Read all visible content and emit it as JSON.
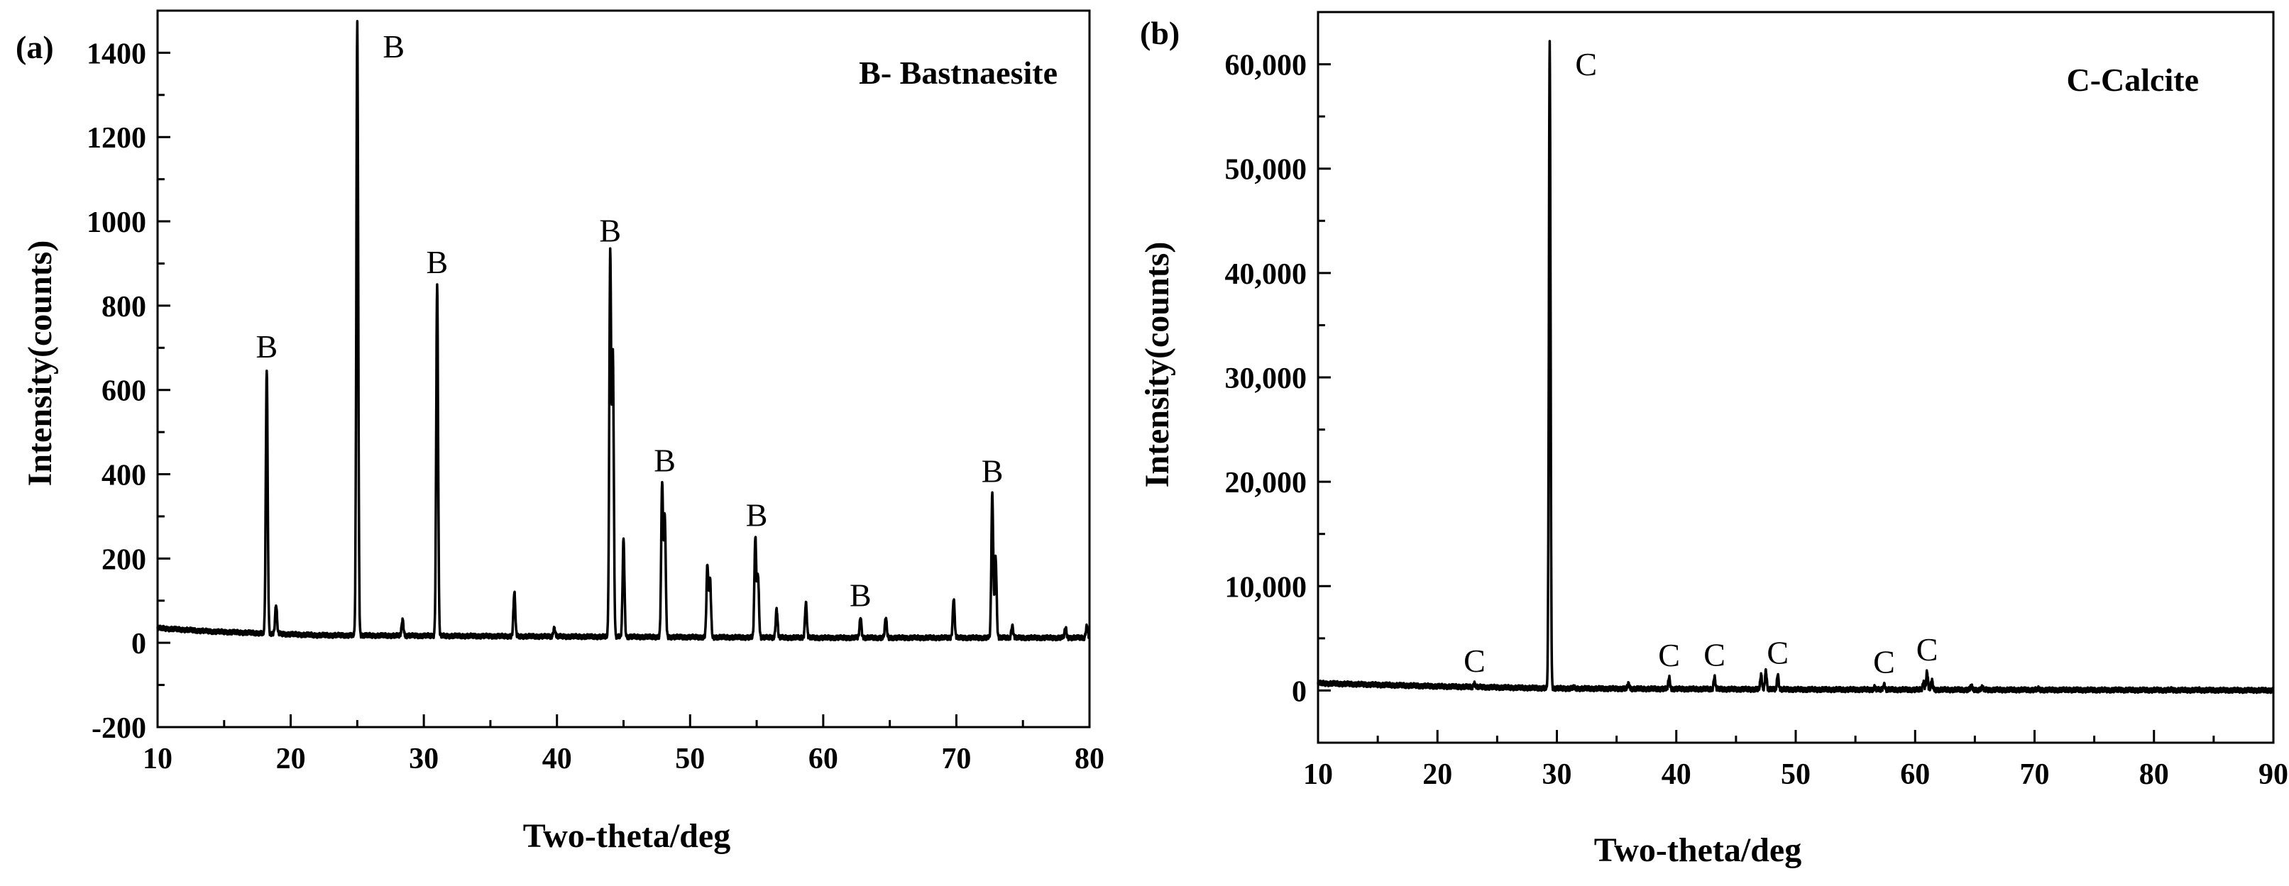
{
  "chart_data": [
    {
      "panel_label": "(a)",
      "type": "line",
      "legend": "B- Bastnaesite",
      "xlabel": "Two-theta/deg",
      "ylabel": "Intensity(counts)",
      "xlim": [
        10,
        80
      ],
      "ylim": [
        -200,
        1500
      ],
      "xticks": [
        10,
        20,
        30,
        40,
        50,
        60,
        70,
        80
      ],
      "xtick_labels": [
        "10",
        "20",
        "30",
        "40",
        "50",
        "60",
        "70",
        "80"
      ],
      "yticks": [
        -200,
        0,
        200,
        400,
        600,
        800,
        1000,
        1200,
        1400
      ],
      "ytick_labels": [
        "-200",
        "0",
        "200",
        "400",
        "600",
        "800",
        "1000",
        "1200",
        "1400"
      ],
      "baseline": [
        [
          10,
          35
        ],
        [
          14,
          27
        ],
        [
          22,
          18
        ],
        [
          40,
          15
        ],
        [
          60,
          12
        ],
        [
          80,
          12
        ]
      ],
      "peaks": [
        [
          18.2,
          650
        ],
        [
          18.9,
          90
        ],
        [
          25.0,
          1470
        ],
        [
          28.4,
          55
        ],
        [
          31.0,
          850
        ],
        [
          36.8,
          120
        ],
        [
          39.8,
          35
        ],
        [
          44.0,
          925
        ],
        [
          44.2,
          680
        ],
        [
          45.0,
          245
        ],
        [
          47.9,
          380
        ],
        [
          48.1,
          300
        ],
        [
          51.3,
          185
        ],
        [
          51.5,
          150
        ],
        [
          54.9,
          250
        ],
        [
          55.1,
          160
        ],
        [
          56.5,
          80
        ],
        [
          58.7,
          95
        ],
        [
          62.8,
          60
        ],
        [
          64.7,
          60
        ],
        [
          69.8,
          105
        ],
        [
          72.7,
          355
        ],
        [
          72.95,
          205
        ],
        [
          74.2,
          40
        ],
        [
          78.2,
          35
        ],
        [
          79.8,
          40
        ]
      ],
      "peak_labels": [
        {
          "text": "B",
          "x": 18.2,
          "y": 650
        },
        {
          "text": "B",
          "x": 25.0,
          "y": 1470
        },
        {
          "text": "B",
          "x": 31.0,
          "y": 850
        },
        {
          "text": "B",
          "x": 44.0,
          "y": 925
        },
        {
          "text": "B",
          "x": 48.1,
          "y": 380
        },
        {
          "text": "B",
          "x": 55.0,
          "y": 250
        },
        {
          "text": "B",
          "x": 62.8,
          "y": 60
        },
        {
          "text": "B",
          "x": 72.7,
          "y": 355
        }
      ]
    },
    {
      "panel_label": "(b)",
      "type": "line",
      "legend": "C-Calcite",
      "xlabel": "Two-theta/deg",
      "ylabel": "Intensity(counts)",
      "xlim": [
        10,
        90
      ],
      "ylim": [
        -5000,
        65000
      ],
      "xticks": [
        10,
        20,
        30,
        40,
        50,
        60,
        70,
        80,
        90
      ],
      "xtick_labels": [
        "10",
        "20",
        "30",
        "40",
        "50",
        "60",
        "70",
        "80",
        "90"
      ],
      "yticks": [
        0,
        10000,
        20000,
        30000,
        40000,
        50000,
        60000
      ],
      "ytick_labels": [
        "0",
        "10,000",
        "20,000",
        "30,000",
        "40,000",
        "50,000",
        "60,000"
      ],
      "baseline": [
        [
          10,
          700
        ],
        [
          20,
          400
        ],
        [
          30,
          200
        ],
        [
          50,
          100
        ],
        [
          90,
          20
        ]
      ],
      "peaks": [
        [
          23.1,
          700
        ],
        [
          29.4,
          62200
        ],
        [
          31.4,
          300
        ],
        [
          36.0,
          650
        ],
        [
          39.4,
          1250
        ],
        [
          43.2,
          1300
        ],
        [
          47.1,
          1500
        ],
        [
          47.5,
          1900
        ],
        [
          48.5,
          1500
        ],
        [
          56.6,
          300
        ],
        [
          57.4,
          600
        ],
        [
          60.7,
          800
        ],
        [
          61.0,
          1800
        ],
        [
          61.4,
          1000
        ],
        [
          64.7,
          450
        ],
        [
          65.6,
          300
        ],
        [
          70.3,
          150
        ],
        [
          72.9,
          100
        ],
        [
          77.2,
          100
        ],
        [
          81.5,
          80
        ],
        [
          83.8,
          80
        ]
      ],
      "peak_labels": [
        {
          "text": "C",
          "x": 23.1,
          "y": 700
        },
        {
          "text": "C",
          "x": 29.4,
          "y": 62200
        },
        {
          "text": "C",
          "x": 39.4,
          "y": 1250
        },
        {
          "text": "C",
          "x": 43.2,
          "y": 1300
        },
        {
          "text": "C",
          "x": 48.5,
          "y": 1500
        },
        {
          "text": "C",
          "x": 57.4,
          "y": 600
        },
        {
          "text": "C",
          "x": 61.0,
          "y": 1800
        }
      ]
    }
  ]
}
